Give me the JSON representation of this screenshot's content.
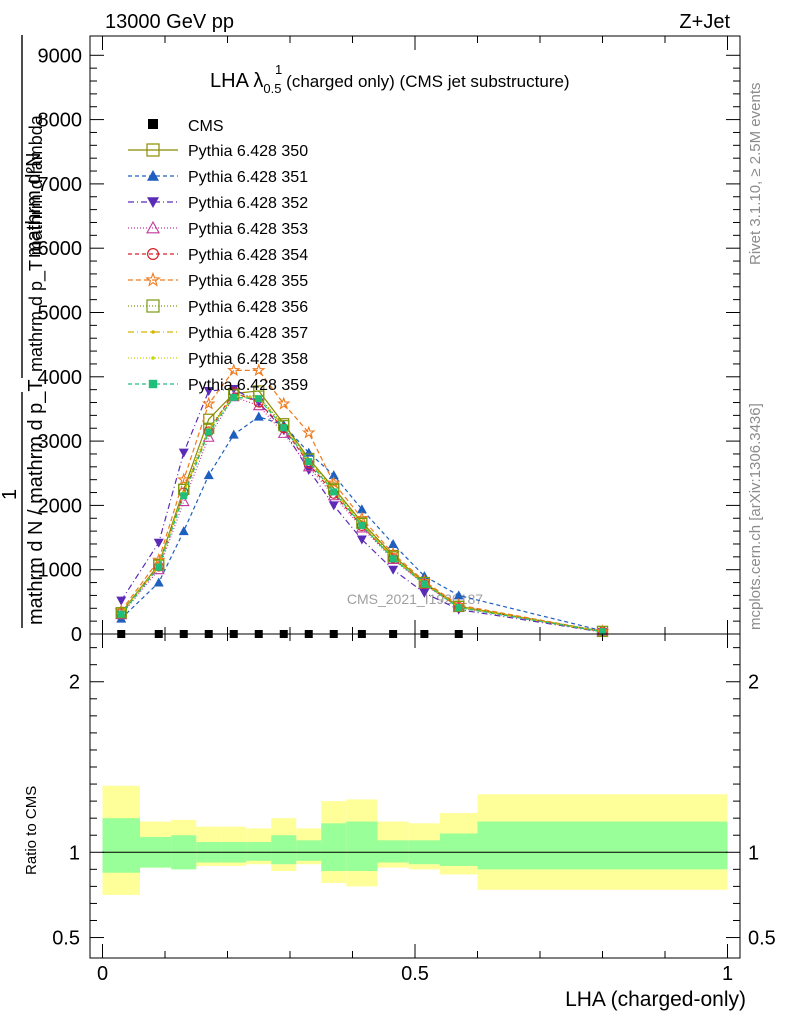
{
  "header": {
    "left": "13000 GeV pp",
    "right": "Z+Jet"
  },
  "side_labels": {
    "rivet": "Rivet 3.1.10, ≥ 2.5M events",
    "mcplots": "mcplots.cern.ch [arXiv:1306.3436]"
  },
  "watermark": "CMS_2021_I1920187",
  "chart_data": [
    {
      "type": "line",
      "title_main": "LHA λ",
      "title_sup": "1",
      "title_sub": "0.5",
      "title_rest": " (charged only) (CMS jet substructure)",
      "ylabel_top": "mathrm d²N",
      "ylabel_top_sub": "mathrm d p_T mathrm d lambda",
      "ylabel_bottom": "mathrm d N / mathrm d p_T",
      "ylabel_one": "1",
      "xlim": [
        -0.02,
        1.02
      ],
      "ylim": [
        0,
        9300
      ],
      "yticks": [
        {
          "v": 0,
          "label": "0"
        },
        {
          "v": 1000,
          "label": "1000"
        },
        {
          "v": 2000,
          "label": "2000"
        },
        {
          "v": 3000,
          "label": "3000"
        },
        {
          "v": 4000,
          "label": "4000"
        },
        {
          "v": 5000,
          "label": "5000"
        },
        {
          "v": 6000,
          "label": "6000"
        },
        {
          "v": 7000,
          "label": "7000"
        },
        {
          "v": 8000,
          "label": "8000"
        },
        {
          "v": 9000,
          "label": "9000"
        }
      ],
      "x": [
        0.03,
        0.09,
        0.13,
        0.17,
        0.21,
        0.25,
        0.29,
        0.33,
        0.37,
        0.415,
        0.465,
        0.515,
        0.57,
        0.8
      ],
      "cms": {
        "name": "CMS",
        "x": [
          0.03,
          0.09,
          0.13,
          0.17,
          0.21,
          0.25,
          0.29,
          0.33,
          0.37,
          0.415,
          0.465,
          0.515,
          0.57
        ],
        "y": [
          0,
          0,
          0,
          0,
          0,
          0,
          0,
          0,
          0,
          0,
          0,
          0,
          0
        ]
      },
      "series": [
        {
          "name": "Pythia 6.428 350",
          "color": "#8b8b00",
          "marker": "square-open",
          "dash": "",
          "y": [
            330,
            1080,
            2250,
            3340,
            3740,
            3780,
            3270,
            2730,
            2270,
            1740,
            1220,
            800,
            430,
            40
          ]
        },
        {
          "name": "Pythia 6.428 351",
          "color": "#1f5fbf",
          "marker": "triangle-up",
          "dash": "4,3",
          "y": [
            240,
            800,
            1600,
            2470,
            3100,
            3380,
            3250,
            2820,
            2470,
            1940,
            1400,
            900,
            600,
            50
          ]
        },
        {
          "name": "Pythia 6.428 352",
          "color": "#5b2bb8",
          "marker": "triangle-down",
          "dash": "6,3,1,3",
          "y": [
            520,
            1420,
            2820,
            3780,
            3810,
            3600,
            3170,
            2550,
            2000,
            1470,
            1000,
            640,
            380,
            30
          ]
        },
        {
          "name": "Pythia 6.428 353",
          "color": "#c0399c",
          "marker": "triangle-open",
          "dash": "1,2",
          "y": [
            300,
            1000,
            2060,
            3060,
            3690,
            3550,
            3120,
            2600,
            2150,
            1650,
            1160,
            770,
            410,
            30
          ]
        },
        {
          "name": "Pythia 6.428 354",
          "color": "#d6202a",
          "marker": "circle-open",
          "dash": "4,3",
          "y": [
            320,
            1050,
            2200,
            3150,
            3760,
            3600,
            3200,
            2650,
            2180,
            1680,
            1180,
            780,
            420,
            35
          ]
        },
        {
          "name": "Pythia 6.428 355",
          "color": "#f07a1c",
          "marker": "star-open",
          "dash": "5,3",
          "y": [
            360,
            1150,
            2400,
            3580,
            4100,
            4100,
            3580,
            3130,
            2350,
            1800,
            1250,
            820,
            450,
            40
          ]
        },
        {
          "name": "Pythia 6.428 356",
          "color": "#7a9a10",
          "marker": "square-open",
          "dash": "1,2",
          "y": [
            330,
            1070,
            2250,
            3200,
            3720,
            3700,
            3240,
            2720,
            2250,
            1720,
            1200,
            800,
            430,
            40
          ]
        },
        {
          "name": "Pythia 6.428 357",
          "color": "#d6b400",
          "marker": "dot",
          "dash": "6,3,1,3",
          "y": [
            320,
            1060,
            2200,
            3180,
            3700,
            3680,
            3230,
            2700,
            2230,
            1710,
            1190,
            790,
            420,
            35
          ]
        },
        {
          "name": "Pythia 6.428 358",
          "color": "#c6d600",
          "marker": "dot",
          "dash": "1,2",
          "y": [
            320,
            1050,
            2180,
            3160,
            3690,
            3670,
            3220,
            2690,
            2220,
            1700,
            1180,
            780,
            420,
            35
          ]
        },
        {
          "name": "Pythia 6.428 359",
          "color": "#1fbf7a",
          "marker": "square-filled",
          "dash": "4,3",
          "y": [
            310,
            1040,
            2150,
            3140,
            3680,
            3660,
            3210,
            2680,
            2210,
            1690,
            1170,
            780,
            410,
            35
          ]
        }
      ],
      "xticks": [
        {
          "v": 0,
          "label": "0"
        },
        {
          "v": 0.5,
          "label": "0.5"
        },
        {
          "v": 1,
          "label": "1"
        }
      ],
      "xlabel": "LHA (charged-only)",
      "legend_position": "top-left",
      "log_scale": false
    },
    {
      "type": "area",
      "ylabel": "Ratio to CMS",
      "ylim": [
        0.38,
        2.28
      ],
      "yticks": [
        {
          "v": 0.5,
          "label": "0.5"
        },
        {
          "v": 1,
          "label": "1"
        },
        {
          "v": 2,
          "label": "2"
        }
      ],
      "bins": [
        {
          "lo": 0.0,
          "hi": 0.06,
          "inner": [
            0.88,
            1.2
          ],
          "outer": [
            0.75,
            1.39
          ]
        },
        {
          "lo": 0.06,
          "hi": 0.11,
          "inner": [
            0.91,
            1.09
          ],
          "outer": [
            0.91,
            1.18
          ]
        },
        {
          "lo": 0.11,
          "hi": 0.15,
          "inner": [
            0.9,
            1.1
          ],
          "outer": [
            0.9,
            1.19
          ]
        },
        {
          "lo": 0.15,
          "hi": 0.19,
          "inner": [
            0.94,
            1.06
          ],
          "outer": [
            0.92,
            1.15
          ]
        },
        {
          "lo": 0.19,
          "hi": 0.23,
          "inner": [
            0.94,
            1.06
          ],
          "outer": [
            0.92,
            1.15
          ]
        },
        {
          "lo": 0.23,
          "hi": 0.27,
          "inner": [
            0.95,
            1.06
          ],
          "outer": [
            0.93,
            1.14
          ]
        },
        {
          "lo": 0.27,
          "hi": 0.31,
          "inner": [
            0.93,
            1.1
          ],
          "outer": [
            0.89,
            1.2
          ]
        },
        {
          "lo": 0.31,
          "hi": 0.35,
          "inner": [
            0.95,
            1.07
          ],
          "outer": [
            0.93,
            1.14
          ]
        },
        {
          "lo": 0.35,
          "hi": 0.39,
          "inner": [
            0.89,
            1.17
          ],
          "outer": [
            0.82,
            1.3
          ]
        },
        {
          "lo": 0.39,
          "hi": 0.44,
          "inner": [
            0.89,
            1.18
          ],
          "outer": [
            0.8,
            1.31
          ]
        },
        {
          "lo": 0.44,
          "hi": 0.49,
          "inner": [
            0.94,
            1.07
          ],
          "outer": [
            0.91,
            1.18
          ]
        },
        {
          "lo": 0.49,
          "hi": 0.54,
          "inner": [
            0.93,
            1.07
          ],
          "outer": [
            0.9,
            1.17
          ]
        },
        {
          "lo": 0.54,
          "hi": 0.6,
          "inner": [
            0.92,
            1.11
          ],
          "outer": [
            0.87,
            1.23
          ]
        },
        {
          "lo": 0.6,
          "hi": 1.0,
          "inner": [
            0.9,
            1.18
          ],
          "outer": [
            0.78,
            1.34
          ]
        }
      ]
    }
  ]
}
